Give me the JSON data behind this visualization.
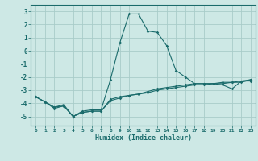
{
  "title": "",
  "xlabel": "Humidex (Indice chaleur)",
  "ylabel": "",
  "background_color": "#cde8e5",
  "grid_color": "#a8ccc9",
  "line_color": "#1a6b6b",
  "xlim": [
    -0.5,
    23.5
  ],
  "ylim": [
    -5.7,
    3.5
  ],
  "xticks": [
    0,
    1,
    2,
    3,
    4,
    5,
    6,
    7,
    8,
    9,
    10,
    11,
    12,
    13,
    14,
    15,
    16,
    17,
    18,
    19,
    20,
    21,
    22,
    23
  ],
  "yticks": [
    -5,
    -4,
    -3,
    -2,
    -1,
    0,
    1,
    2,
    3
  ],
  "line1_x": [
    0,
    1,
    2,
    3,
    4,
    5,
    6,
    7,
    8,
    9,
    10,
    11,
    12,
    13,
    14,
    15,
    16,
    17,
    18,
    19,
    20,
    21,
    22,
    23
  ],
  "line1_y": [
    -3.5,
    -3.9,
    -4.3,
    -4.1,
    -5.0,
    -4.6,
    -4.5,
    -4.5,
    -2.2,
    0.6,
    2.8,
    2.8,
    1.5,
    1.4,
    0.4,
    -1.5,
    -2.0,
    -2.5,
    -2.5,
    -2.5,
    -2.6,
    -2.9,
    -2.3,
    -2.3
  ],
  "line2_x": [
    0,
    1,
    2,
    3,
    4,
    5,
    6,
    7,
    8,
    9,
    10,
    11,
    12,
    13,
    14,
    15,
    16,
    17,
    18,
    19,
    20,
    21,
    22,
    23
  ],
  "line2_y": [
    -3.5,
    -3.9,
    -4.3,
    -4.2,
    -5.0,
    -4.7,
    -4.6,
    -4.6,
    -3.7,
    -3.5,
    -3.4,
    -3.3,
    -3.1,
    -2.9,
    -2.8,
    -2.7,
    -2.6,
    -2.5,
    -2.5,
    -2.5,
    -2.4,
    -2.4,
    -2.3,
    -2.2
  ],
  "line3_x": [
    0,
    1,
    2,
    3,
    4,
    5,
    6,
    7,
    8,
    9,
    10,
    11,
    12,
    13,
    14,
    15,
    16,
    17,
    18,
    19,
    20,
    21,
    22,
    23
  ],
  "line3_y": [
    -3.5,
    -3.9,
    -4.4,
    -4.2,
    -5.0,
    -4.7,
    -4.6,
    -4.6,
    -3.8,
    -3.6,
    -3.4,
    -3.3,
    -3.2,
    -3.0,
    -2.9,
    -2.8,
    -2.7,
    -2.6,
    -2.6,
    -2.5,
    -2.5,
    -2.4,
    -2.4,
    -2.2
  ]
}
